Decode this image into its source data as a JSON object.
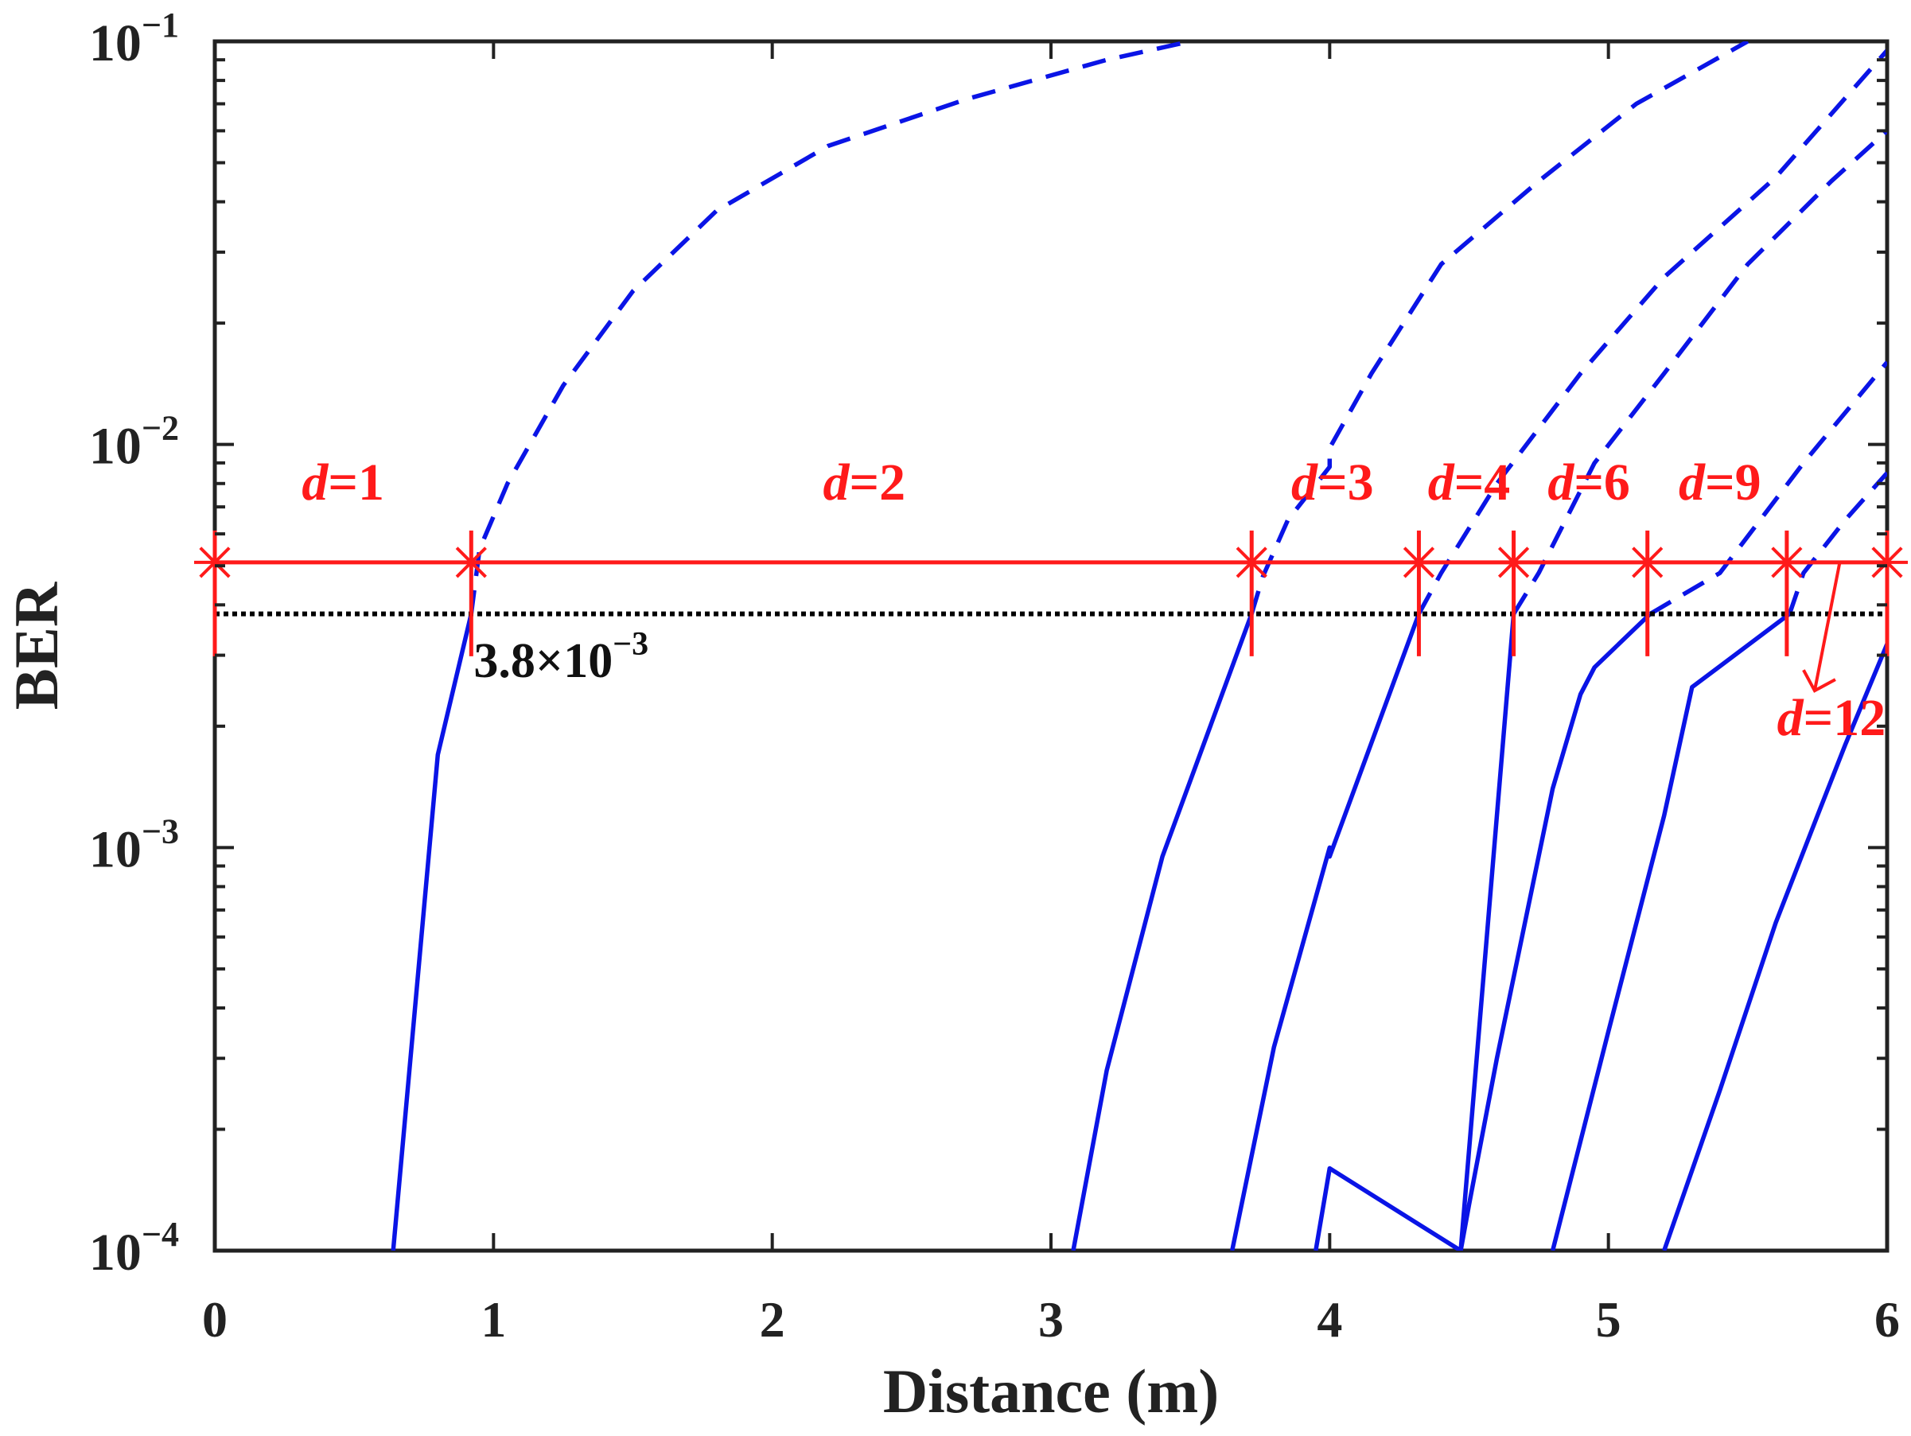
{
  "chart_data": {
    "type": "line",
    "title": "",
    "xlabel": "Distance (m)",
    "ylabel": "BER",
    "xlim": [
      0,
      6
    ],
    "ylim": [
      0.0001,
      0.1
    ],
    "yscale": "log",
    "grid": false,
    "x_ticks": [
      {
        "value": 0,
        "label": "0"
      },
      {
        "value": 1,
        "label": "1"
      },
      {
        "value": 2,
        "label": "2"
      },
      {
        "value": 3,
        "label": "3"
      },
      {
        "value": 4,
        "label": "4"
      },
      {
        "value": 5,
        "label": "5"
      },
      {
        "value": 6,
        "label": "6"
      }
    ],
    "y_ticks": [
      {
        "value": 0.0001,
        "base": "10",
        "exp": "−4"
      },
      {
        "value": 0.001,
        "base": "10",
        "exp": "−3"
      },
      {
        "value": 0.01,
        "base": "10",
        "exp": "−2"
      },
      {
        "value": 0.1,
        "base": "10",
        "exp": "−1"
      }
    ],
    "threshold": {
      "value": 0.0038,
      "label_main": "3.8×10",
      "label_exp": "−3",
      "label_x": 1.2,
      "label_y": 0.0029,
      "color": "#000000"
    },
    "curve_color": "#0a14e6",
    "series": [
      {
        "x": [
          0.64,
          0.8,
          0.92,
          0.95,
          1.05,
          1.25,
          1.5,
          1.8,
          2.2,
          2.7,
          3.2,
          3.5
        ],
        "y": [
          0.0001,
          0.0017,
          0.0038,
          0.0055,
          0.008,
          0.014,
          0.024,
          0.038,
          0.055,
          0.072,
          0.09,
          0.1
        ]
      },
      {
        "x": [
          3.08,
          3.2,
          3.4,
          3.72,
          3.76,
          3.85,
          4.0,
          4.0,
          4.15,
          4.4,
          4.75,
          5.1,
          5.5
        ],
        "y": [
          0.0001,
          0.00028,
          0.00095,
          0.0038,
          0.0047,
          0.0065,
          0.0088,
          0.0098,
          0.015,
          0.028,
          0.045,
          0.07,
          0.1
        ]
      },
      {
        "x": [
          3.65,
          3.8,
          4.0,
          4.0,
          4.32,
          4.4,
          4.6,
          4.9,
          5.2,
          5.6,
          6.0
        ],
        "y": [
          0.0001,
          0.00032,
          0.001,
          0.00095,
          0.0038,
          0.0048,
          0.008,
          0.015,
          0.026,
          0.046,
          0.095
        ]
      },
      {
        "x": [
          3.95,
          4.0,
          4.47,
          4.66,
          4.75,
          4.95,
          5.2,
          5.5,
          5.8,
          6.0
        ],
        "y": [
          0.0001,
          0.00016,
          0.0001,
          0.0038,
          0.0048,
          0.009,
          0.015,
          0.028,
          0.045,
          0.06
        ]
      },
      {
        "x": [
          4.47,
          4.5,
          4.6,
          4.8,
          4.9,
          4.95,
          5.15,
          5.4,
          5.7,
          6.0
        ],
        "y": [
          0.0001,
          0.00013,
          0.0003,
          0.0014,
          0.0024,
          0.0028,
          0.0038,
          0.0048,
          0.009,
          0.016
        ]
      },
      {
        "x": [
          4.8,
          5.0,
          5.2,
          5.3,
          5.65,
          5.7,
          5.85,
          6.0
        ],
        "y": [
          0.0001,
          0.00035,
          0.0012,
          0.0025,
          0.0038,
          0.0048,
          0.0065,
          0.0085
        ]
      },
      {
        "x": [
          5.2,
          5.4,
          5.6,
          5.75,
          5.85,
          6.0
        ],
        "y": [
          0.0001,
          0.00025,
          0.00065,
          0.0012,
          0.0018,
          0.0032
        ]
      }
    ],
    "segments": {
      "y": 0.0051,
      "color": "#ff1a1a",
      "bounds": [
        0,
        0.92,
        3.72,
        4.32,
        4.66,
        5.14,
        5.64,
        6.0
      ],
      "labels": [
        {
          "italic": "d",
          "value": "=1",
          "x": 0.46,
          "y": 0.0073
        },
        {
          "italic": "d",
          "value": "=2",
          "x": 2.33,
          "y": 0.0073
        },
        {
          "italic": "d",
          "value": "=3",
          "x": 4.01,
          "y": 0.0073
        },
        {
          "italic": "d",
          "value": "=4",
          "x": 4.5,
          "y": 0.0073
        },
        {
          "italic": "d",
          "value": "=6",
          "x": 4.93,
          "y": 0.0073
        },
        {
          "italic": "d",
          "value": "=9",
          "x": 5.4,
          "y": 0.0073
        },
        {
          "italic": "d",
          "value": "=12",
          "x": 5.8,
          "y": 0.0019
        }
      ]
    }
  }
}
